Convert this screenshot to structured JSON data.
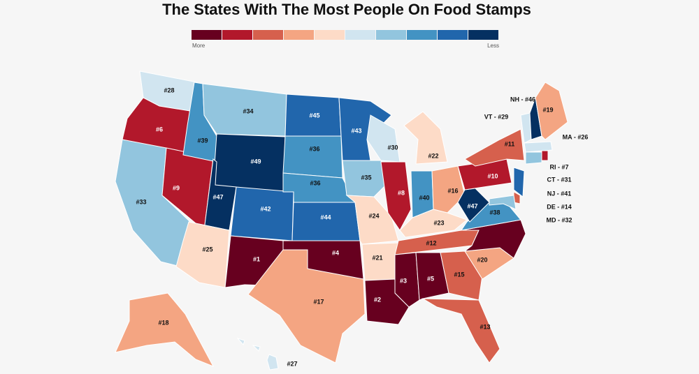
{
  "title": "The States With The Most People On Food Stamps",
  "legend": {
    "more": "More",
    "less": "Less",
    "colors": [
      "#67001f",
      "#b2182b",
      "#d6604d",
      "#f4a582",
      "#fddbc7",
      "#d1e5f0",
      "#92c5de",
      "#4393c3",
      "#2166ac",
      "#053061"
    ]
  },
  "states": [
    {
      "label": "#28",
      "color": "#d1e5f0"
    },
    {
      "label": "#6",
      "color": "#b2182b"
    },
    {
      "label": "#33",
      "color": "#92c5de"
    },
    {
      "label": "#9",
      "color": "#b2182b"
    },
    {
      "label": "#39",
      "color": "#4393c3"
    },
    {
      "label": "#34",
      "color": "#92c5de"
    },
    {
      "label": "#49",
      "color": "#053061"
    },
    {
      "label": "#47",
      "color": "#053061"
    },
    {
      "label": "#25",
      "color": "#fddbc7"
    },
    {
      "label": "#42",
      "color": "#2166ac"
    },
    {
      "label": "#1",
      "color": "#67001f"
    },
    {
      "label": "#45",
      "color": "#2166ac"
    },
    {
      "label": "#36",
      "color": "#4393c3"
    },
    {
      "label": "#36",
      "color": "#4393c3"
    },
    {
      "label": "#44",
      "color": "#2166ac"
    },
    {
      "label": "#4",
      "color": "#67001f"
    },
    {
      "label": "#17",
      "color": "#f4a582"
    },
    {
      "label": "#43",
      "color": "#2166ac"
    },
    {
      "label": "#35",
      "color": "#92c5de"
    },
    {
      "label": "#24",
      "color": "#fddbc7"
    },
    {
      "label": "#21",
      "color": "#fddbc7"
    },
    {
      "label": "#2",
      "color": "#67001f"
    },
    {
      "label": "#30",
      "color": "#d1e5f0"
    },
    {
      "label": "#8",
      "color": "#b2182b"
    },
    {
      "label": "#22",
      "color": "#fddbc7"
    },
    {
      "label": "#40",
      "color": "#4393c3"
    },
    {
      "label": "#16",
      "color": "#f4a582"
    },
    {
      "label": "#23",
      "color": "#fddbc7"
    },
    {
      "label": "#12",
      "color": "#d6604d"
    },
    {
      "label": "#3",
      "color": "#67001f"
    },
    {
      "label": "#5",
      "color": "#67001f"
    },
    {
      "label": "#15",
      "color": "#d6604d"
    },
    {
      "label": "#13",
      "color": "#d6604d"
    },
    {
      "label": "#20",
      "color": "#f4a582"
    },
    {
      "label": null,
      "color": "#67001f"
    },
    {
      "label": "#38",
      "color": "#4393c3"
    },
    {
      "label": "#47",
      "color": "#053061"
    },
    {
      "label": "#10",
      "color": "#b2182b"
    },
    {
      "label": "#11",
      "color": "#d6604d"
    },
    {
      "label": "VT - #29",
      "color": "#d1e5f0"
    },
    {
      "label": "NH - #46",
      "color": "#053061"
    },
    {
      "label": "#19",
      "color": "#f4a582"
    },
    {
      "label": "MA - #26",
      "color": "#d1e5f0"
    },
    {
      "label": "RI - #7",
      "color": "#b2182b"
    },
    {
      "label": "CT - #31",
      "color": "#92c5de"
    },
    {
      "label": "NJ - #41",
      "color": "#2166ac"
    },
    {
      "label": "DE - #14",
      "color": "#d6604d"
    },
    {
      "label": "MD - #32",
      "color": "#92c5de"
    },
    {
      "label": "#18",
      "color": "#f4a582"
    },
    {
      "label": "#27",
      "color": "#d1e5f0"
    }
  ]
}
